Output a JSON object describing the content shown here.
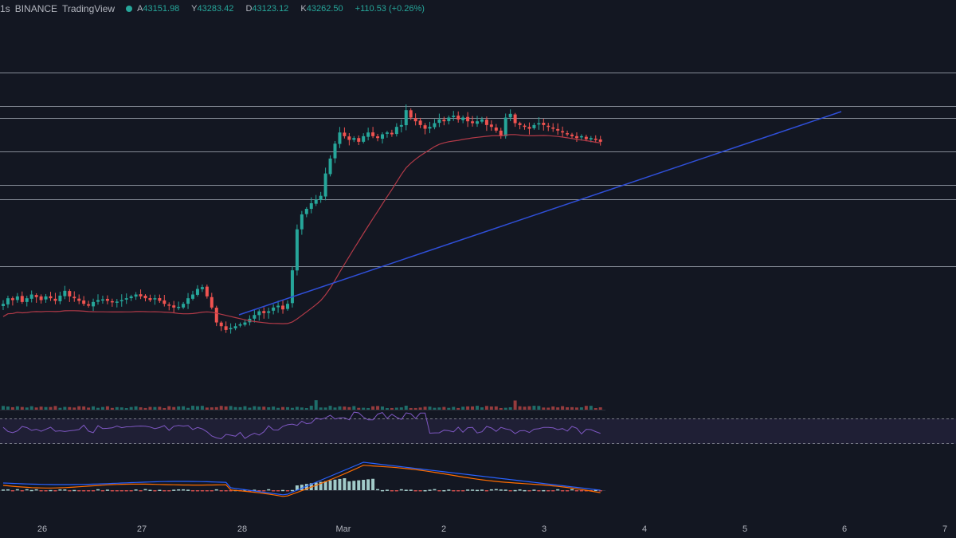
{
  "header": {
    "interval": "1s",
    "exchange": "BINANCE",
    "brand": "TradingView",
    "ohlc": [
      {
        "key": "A",
        "value": "43151.98"
      },
      {
        "key": "Y",
        "value": "43283.42"
      },
      {
        "key": "D",
        "value": "43123.12"
      },
      {
        "key": "K",
        "value": "43262.50"
      }
    ],
    "change": "+110.53 (+0.26%)"
  },
  "colors": {
    "background": "#131722",
    "up": "#26a69a",
    "down": "#ef5350",
    "ma": "#b23a48",
    "trendline": "#2f4fd8",
    "horizontal": "#9aa0ab",
    "rsi": "#7e57c2",
    "macd": "#2962ff",
    "signal": "#ff6d00"
  },
  "x_axis": {
    "labels": [
      "26",
      "27",
      "28",
      "Mar",
      "2",
      "3",
      "4",
      "5",
      "6",
      "7"
    ]
  },
  "chart_data": {
    "type": "candlestick",
    "note_levels": "horizontal lines at price levels",
    "horizontal_levels": [
      45900,
      45000,
      44700,
      43800,
      42900,
      42500,
      40700
    ],
    "series": [
      {
        "name": "price",
        "values": [
          39700,
          39850,
          39800,
          39900,
          39750,
          39850,
          39950,
          39880,
          39800,
          39900,
          39850,
          39780,
          39920,
          40050,
          39900,
          39850,
          39780,
          39700,
          39650,
          39750,
          39800,
          39820,
          39780,
          39750,
          39760,
          39800,
          39850,
          39900,
          39950,
          39900,
          39850,
          39800,
          39850,
          39780,
          39700,
          39650,
          39600,
          39620,
          39700,
          39850,
          39950,
          40100,
          40150,
          39900,
          39600,
          39200,
          39100,
          39000,
          39050,
          39100,
          39150,
          39200,
          39300,
          39400,
          39500,
          39450,
          39500,
          39600,
          39650,
          39550,
          39700,
          40600,
          41700,
          42100,
          42250,
          42400,
          42500,
          42600,
          43200,
          43600,
          44000,
          44300,
          44200,
          44100,
          44150,
          44050,
          44200,
          44300,
          44200,
          44150,
          44250,
          44300,
          44250,
          44450,
          44500,
          44900,
          44700,
          44600,
          44500,
          44400,
          44450,
          44550,
          44650,
          44600,
          44700,
          44750,
          44650,
          44700,
          44600,
          44550,
          44600,
          44650,
          44500,
          44450,
          44350,
          44200,
          44700,
          44800,
          44550,
          44500,
          44450,
          44400,
          44500,
          44550,
          44500,
          44450,
          44400,
          44350,
          44300,
          44250,
          44200,
          44150,
          44200,
          44120,
          44150,
          44100,
          44050
        ]
      }
    ]
  }
}
